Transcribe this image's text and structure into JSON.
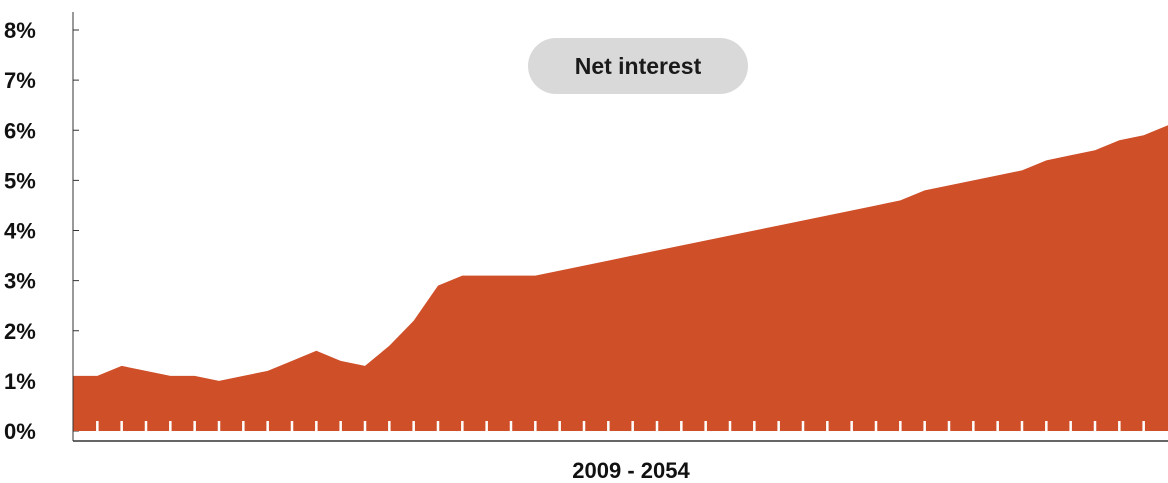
{
  "chart_data": {
    "type": "area",
    "x_range": [
      2009,
      2054
    ],
    "xlabel": "2009 - 2054",
    "ylabel": "",
    "ylim": [
      0,
      8
    ],
    "y_ticks": [
      "0%",
      "1%",
      "2%",
      "3%",
      "4%",
      "5%",
      "6%",
      "7%",
      "8%"
    ],
    "legend_position": "top-center",
    "grid": false,
    "series": [
      {
        "name": "Net interest",
        "color": "#cf4f28",
        "x": [
          2009,
          2010,
          2011,
          2012,
          2013,
          2014,
          2015,
          2016,
          2017,
          2018,
          2019,
          2020,
          2021,
          2022,
          2023,
          2024,
          2025,
          2026,
          2027,
          2028,
          2029,
          2030,
          2031,
          2032,
          2033,
          2034,
          2035,
          2036,
          2037,
          2038,
          2039,
          2040,
          2041,
          2042,
          2043,
          2044,
          2045,
          2046,
          2047,
          2048,
          2049,
          2050,
          2051,
          2052,
          2053,
          2054
        ],
        "values": [
          1.1,
          1.1,
          1.3,
          1.2,
          1.1,
          1.1,
          1.0,
          1.1,
          1.2,
          1.4,
          1.6,
          1.4,
          1.3,
          1.7,
          2.2,
          2.9,
          3.1,
          3.1,
          3.1,
          3.1,
          3.2,
          3.3,
          3.4,
          3.5,
          3.6,
          3.7,
          3.8,
          3.9,
          4.0,
          4.1,
          4.2,
          4.3,
          4.4,
          4.5,
          4.6,
          4.8,
          4.9,
          5.0,
          5.1,
          5.2,
          5.4,
          5.5,
          5.6,
          5.8,
          5.9,
          6.1
        ]
      }
    ],
    "axis_color": "#333333",
    "tick_mark_color": "#ffffff",
    "pill_color": "#d9d9d9"
  }
}
